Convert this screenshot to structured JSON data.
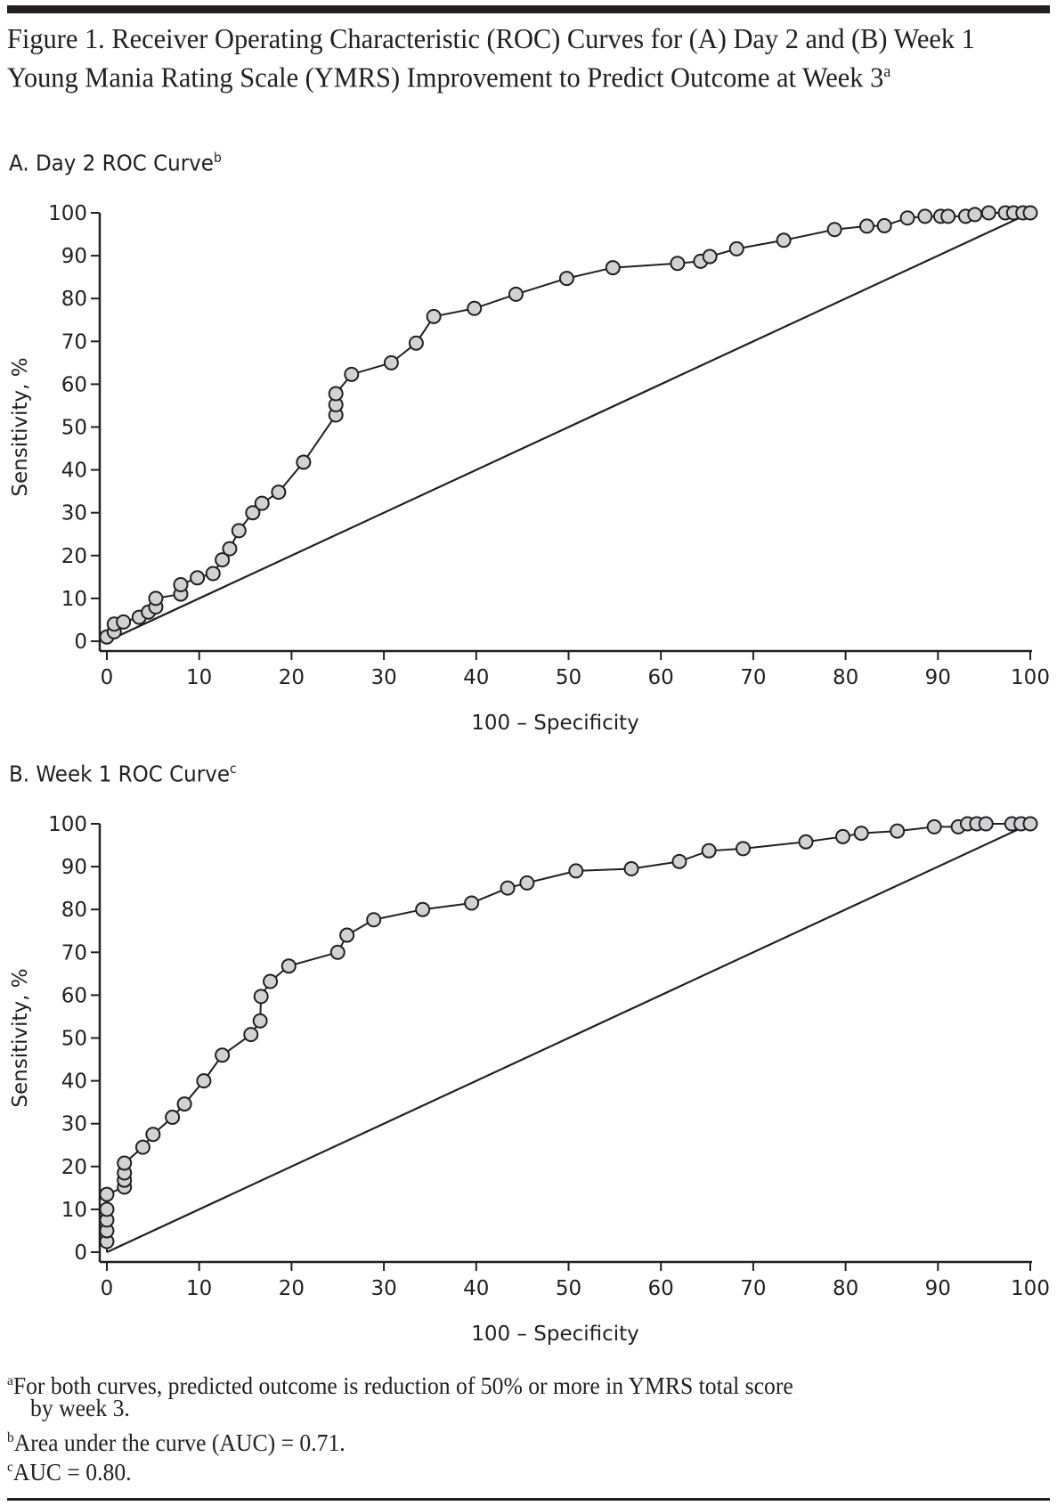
{
  "figure": {
    "title": "Figure 1. Receiver Operating Characteristic (ROC) Curves for (A) Day 2 and (B) Week 1 Young Mania Rating Scale (YMRS) Improvement to Predict Outcome at Week 3",
    "title_sup": "a",
    "footnotes": [
      {
        "mark": "a",
        "text": "For both curves, predicted outcome is reduction of 50% or more in YMRS total score",
        "text2": "by week 3."
      },
      {
        "mark": "b",
        "text": "Area under the curve (AUC) = 0.71."
      },
      {
        "mark": "c",
        "text": "AUC = 0.80."
      }
    ]
  },
  "chart_data": [
    {
      "type": "line",
      "panel_title": "A. Day 2 ROC Curve",
      "panel_sup": "b",
      "xlabel": "100 – Specificity",
      "ylabel": "Sensitivity, %",
      "xlim": [
        0,
        100
      ],
      "ylim": [
        0,
        100
      ],
      "xticks": [
        0,
        10,
        20,
        30,
        40,
        50,
        60,
        70,
        80,
        90,
        100
      ],
      "yticks": [
        0,
        10,
        20,
        30,
        40,
        50,
        60,
        70,
        80,
        90,
        100
      ],
      "auc": 0.71,
      "reference_line": [
        [
          0,
          0
        ],
        [
          100,
          100
        ]
      ],
      "series": [
        {
          "name": "Day 2",
          "x": [
            0,
            0.8,
            0.8,
            1.8,
            3.5,
            4.5,
            5.3,
            5.3,
            8,
            8,
            9.8,
            11.5,
            12.5,
            13.3,
            14.3,
            15.8,
            16.8,
            18.6,
            21.3,
            24.8,
            24.8,
            24.8,
            26.5,
            30.8,
            33.5,
            35.4,
            39.8,
            44.3,
            49.8,
            54.8,
            61.8,
            64.3,
            65.3,
            68.2,
            73.3,
            78.8,
            82.3,
            84.2,
            86.7,
            88.6,
            90.3,
            91.1,
            93,
            94,
            95.5,
            97.3,
            98.2,
            99.2,
            100
          ],
          "y": [
            1,
            2.2,
            4,
            4.5,
            5.6,
            6.8,
            8,
            10,
            11,
            13.2,
            14.8,
            15.8,
            19,
            21.6,
            25.8,
            30,
            32.2,
            34.8,
            41.8,
            52.8,
            55.2,
            57.8,
            62.3,
            65,
            69.6,
            75.8,
            77.7,
            81,
            84.7,
            87.2,
            88.2,
            88.7,
            89.8,
            91.6,
            93.6,
            96.1,
            96.9,
            97,
            98.8,
            99.2,
            99.2,
            99.2,
            99.2,
            99.6,
            100,
            100,
            100,
            100,
            100
          ]
        }
      ]
    },
    {
      "type": "line",
      "panel_title": "B. Week 1 ROC Curve",
      "panel_sup": "c",
      "xlabel": "100 – Specificity",
      "ylabel": "Sensitivity, %",
      "xlim": [
        0,
        100
      ],
      "ylim": [
        0,
        100
      ],
      "xticks": [
        0,
        10,
        20,
        30,
        40,
        50,
        60,
        70,
        80,
        90,
        100
      ],
      "yticks": [
        0,
        10,
        20,
        30,
        40,
        50,
        60,
        70,
        80,
        90,
        100
      ],
      "auc": 0.8,
      "reference_line": [
        [
          0,
          0
        ],
        [
          100,
          100
        ]
      ],
      "series": [
        {
          "name": "Week 1",
          "x": [
            0,
            0,
            0,
            0,
            0,
            1.9,
            1.9,
            1.9,
            1.9,
            3.9,
            5,
            7.1,
            8.4,
            10.5,
            12.5,
            15.6,
            16.6,
            16.7,
            17.7,
            19.7,
            25,
            26,
            28.9,
            34.2,
            39.5,
            43.4,
            45.5,
            50.8,
            56.8,
            62,
            65.2,
            68.9,
            75.7,
            79.7,
            81.7,
            85.6,
            89.6,
            92.2,
            93.2,
            94.2,
            95.2,
            98,
            99,
            100
          ],
          "y": [
            2.5,
            5,
            7.5,
            10,
            13.5,
            15.2,
            16.8,
            18.5,
            20.8,
            24.5,
            27.5,
            31.5,
            34.6,
            40,
            46,
            50.8,
            54,
            59.7,
            63.2,
            66.8,
            70,
            74,
            77.6,
            80,
            81.5,
            85,
            86.2,
            89,
            89.5,
            91.2,
            93.7,
            94.2,
            95.8,
            97,
            97.8,
            98.3,
            99.3,
            99.3,
            100,
            100,
            100,
            100,
            100,
            100
          ]
        }
      ]
    }
  ]
}
